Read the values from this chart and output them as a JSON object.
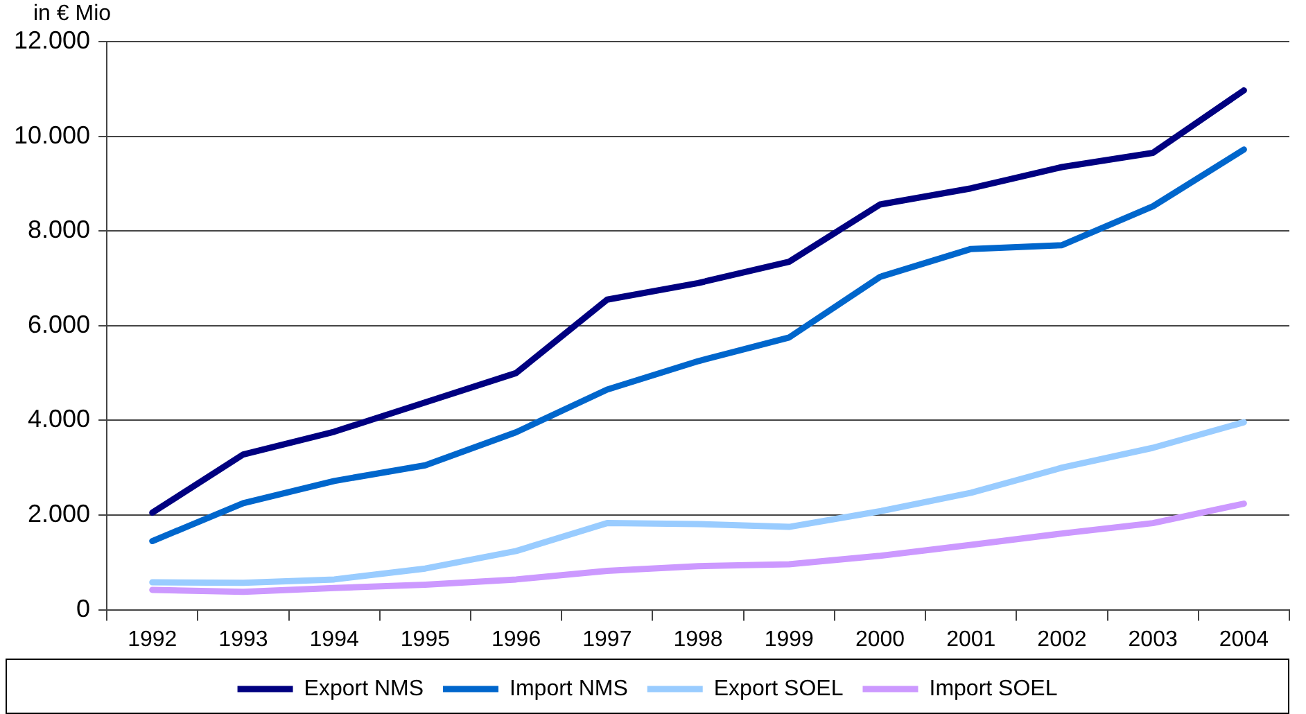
{
  "chart_data": {
    "type": "line",
    "ylabel": "in € Mio",
    "categories": [
      "1992",
      "1993",
      "1994",
      "1995",
      "1996",
      "1997",
      "1998",
      "1999",
      "2000",
      "2001",
      "2002",
      "2003",
      "2004"
    ],
    "series": [
      {
        "name": "Export NMS",
        "color": "#000080",
        "values": [
          2050,
          3280,
          3760,
          4380,
          5000,
          6550,
          6900,
          7350,
          8560,
          8900,
          9350,
          9650,
          10970
        ]
      },
      {
        "name": "Import NMS",
        "color": "#0066cc",
        "values": [
          1450,
          2250,
          2720,
          3050,
          3750,
          4650,
          5250,
          5750,
          7030,
          7620,
          7700,
          8520,
          9720
        ]
      },
      {
        "name": "Export SOEL",
        "color": "#99ccff",
        "values": [
          580,
          570,
          640,
          870,
          1240,
          1830,
          1810,
          1750,
          2080,
          2470,
          3000,
          3420,
          3960
        ]
      },
      {
        "name": "Import SOEL",
        "color": "#cc99ff",
        "values": [
          420,
          380,
          460,
          530,
          640,
          820,
          920,
          960,
          1140,
          1370,
          1610,
          1830,
          2240
        ]
      }
    ],
    "ylim": [
      0,
      12000
    ],
    "yticks": [
      0,
      {
        "value": 2000,
        "label": "2.000"
      },
      {
        "value": 4000,
        "label": "4.000"
      },
      {
        "value": 6000,
        "label": "6.000"
      },
      {
        "value": 8000,
        "label": "8.000"
      },
      {
        "value": 10000,
        "label": "10.000"
      },
      {
        "value": 12000,
        "label": "12.000"
      }
    ],
    "grid": "y",
    "legend": "bottom",
    "marker": "none",
    "line_style": "solid"
  }
}
